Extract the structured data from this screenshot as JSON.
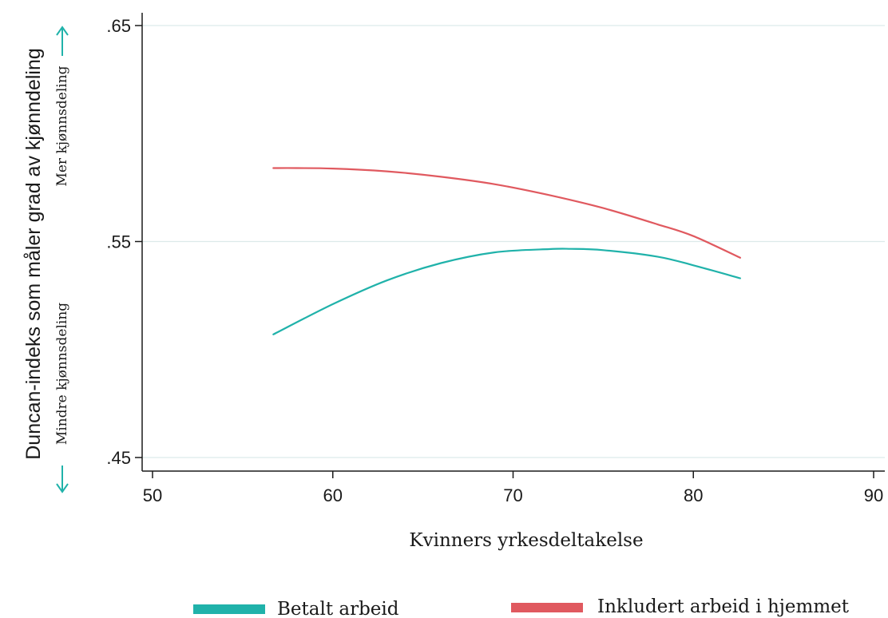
{
  "chart_data": {
    "type": "line",
    "xlabel": "Kvinners yrkesdeltakelse",
    "ylabel": "Duncan-indeks som måler grad av kjønndeling",
    "annotations": {
      "up": "Mer kjønnsdeling",
      "down": "Mindre kjønnsdeling"
    },
    "xlim": [
      50,
      90
    ],
    "ylim": [
      0.45,
      0.65
    ],
    "xticks": [
      {
        "value": 50,
        "label": "50"
      },
      {
        "value": 60,
        "label": "60"
      },
      {
        "value": 70,
        "label": "70"
      },
      {
        "value": 80,
        "label": "80"
      },
      {
        "value": 90,
        "label": "90"
      }
    ],
    "yticks": [
      {
        "value": 0.45,
        "label": ".45"
      },
      {
        "value": 0.55,
        "label": ".55"
      },
      {
        "value": 0.65,
        "label": ".65"
      }
    ],
    "grid": true,
    "legend_position": "bottom",
    "series": [
      {
        "name": "Betalt arbeid",
        "color": "#20b2aa",
        "x": [
          56.7,
          60,
          63,
          66,
          69,
          72,
          73.2,
          75,
          78,
          80,
          82.6
        ],
        "y": [
          0.507,
          0.521,
          0.532,
          0.54,
          0.545,
          0.5465,
          0.5466,
          0.546,
          0.543,
          0.539,
          0.533
        ]
      },
      {
        "name": "Inkludert arbeid i hjemmet",
        "color": "#e0595f",
        "x": [
          56.7,
          58,
          60,
          63,
          66,
          69,
          72,
          75,
          78,
          80,
          82.6
        ],
        "y": [
          0.584,
          0.584,
          0.5838,
          0.5825,
          0.58,
          0.5765,
          0.5715,
          0.5655,
          0.558,
          0.5525,
          0.5425
        ]
      }
    ]
  }
}
